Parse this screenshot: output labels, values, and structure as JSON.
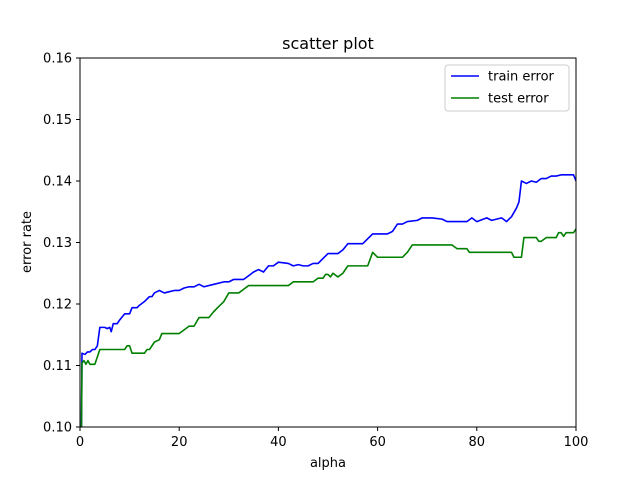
{
  "chart_data": {
    "type": "line",
    "title": "scatter plot",
    "xlabel": "alpha",
    "ylabel": "error rate",
    "xlim": [
      0,
      100
    ],
    "ylim": [
      0.1,
      0.16
    ],
    "xticks": [
      0,
      20,
      40,
      60,
      80,
      100
    ],
    "yticks": [
      0.1,
      0.11,
      0.12,
      0.13,
      0.14,
      0.15,
      0.16
    ],
    "xtick_labels": [
      "0",
      "20",
      "40",
      "60",
      "80",
      "100"
    ],
    "ytick_labels": [
      "0.10",
      "0.11",
      "0.12",
      "0.13",
      "0.14",
      "0.15",
      "0.16"
    ],
    "grid": false,
    "legend_position": "top-right",
    "series": [
      {
        "name": "train error",
        "color": "#0000ff",
        "points": [
          [
            0,
            0.1
          ],
          [
            0.3,
            0.1
          ],
          [
            0.4,
            0.112
          ],
          [
            1,
            0.1118
          ],
          [
            1.5,
            0.1122
          ],
          [
            2,
            0.1122
          ],
          [
            2.5,
            0.1126
          ],
          [
            3,
            0.1126
          ],
          [
            3.5,
            0.1132
          ],
          [
            4,
            0.1162
          ],
          [
            5,
            0.1162
          ],
          [
            5.5,
            0.116
          ],
          [
            6,
            0.1162
          ],
          [
            6.3,
            0.1155
          ],
          [
            6.7,
            0.1168
          ],
          [
            7.5,
            0.1168
          ],
          [
            8,
            0.1174
          ],
          [
            9,
            0.1184
          ],
          [
            10,
            0.1184
          ],
          [
            10.5,
            0.1194
          ],
          [
            11.5,
            0.1194
          ],
          [
            12,
            0.1198
          ],
          [
            13,
            0.1204
          ],
          [
            14,
            0.1212
          ],
          [
            14.5,
            0.1212
          ],
          [
            15,
            0.1218
          ],
          [
            16,
            0.1222
          ],
          [
            17,
            0.1218
          ],
          [
            18,
            0.122
          ],
          [
            19,
            0.1222
          ],
          [
            20,
            0.1222
          ],
          [
            21,
            0.1226
          ],
          [
            22,
            0.1228
          ],
          [
            23,
            0.1228
          ],
          [
            24,
            0.1232
          ],
          [
            25,
            0.1228
          ],
          [
            27,
            0.1232
          ],
          [
            29,
            0.1236
          ],
          [
            30,
            0.1236
          ],
          [
            31,
            0.124
          ],
          [
            33,
            0.124
          ],
          [
            34,
            0.1246
          ],
          [
            35,
            0.1252
          ],
          [
            36,
            0.1256
          ],
          [
            37,
            0.1252
          ],
          [
            38,
            0.1262
          ],
          [
            39,
            0.1262
          ],
          [
            40,
            0.1268
          ],
          [
            42,
            0.1266
          ],
          [
            43,
            0.1262
          ],
          [
            44,
            0.1264
          ],
          [
            45,
            0.1262
          ],
          [
            46,
            0.1262
          ],
          [
            47,
            0.1266
          ],
          [
            48,
            0.1266
          ],
          [
            49,
            0.1274
          ],
          [
            50,
            0.1282
          ],
          [
            52,
            0.1282
          ],
          [
            53,
            0.1288
          ],
          [
            54,
            0.1298
          ],
          [
            57,
            0.1298
          ],
          [
            58,
            0.1306
          ],
          [
            59,
            0.1314
          ],
          [
            62,
            0.1314
          ],
          [
            63,
            0.1318
          ],
          [
            64,
            0.133
          ],
          [
            65,
            0.133
          ],
          [
            66,
            0.1334
          ],
          [
            68,
            0.1336
          ],
          [
            69,
            0.134
          ],
          [
            71,
            0.134
          ],
          [
            73,
            0.1338
          ],
          [
            74,
            0.1334
          ],
          [
            78,
            0.1334
          ],
          [
            79,
            0.134
          ],
          [
            80,
            0.1334
          ],
          [
            82,
            0.134
          ],
          [
            83,
            0.1336
          ],
          [
            85,
            0.134
          ],
          [
            86,
            0.1334
          ],
          [
            87,
            0.1342
          ],
          [
            88,
            0.1356
          ],
          [
            88.5,
            0.1366
          ],
          [
            89,
            0.14
          ],
          [
            90,
            0.1396
          ],
          [
            91,
            0.14
          ],
          [
            92,
            0.1398
          ],
          [
            93,
            0.1404
          ],
          [
            94,
            0.1404
          ],
          [
            95,
            0.1408
          ],
          [
            96,
            0.1408
          ],
          [
            97,
            0.141
          ],
          [
            99.5,
            0.141
          ],
          [
            100,
            0.14
          ]
        ]
      },
      {
        "name": "test error",
        "color": "#008000",
        "points": [
          [
            0,
            0.1
          ],
          [
            0.3,
            0.1
          ],
          [
            0.4,
            0.1104
          ],
          [
            0.8,
            0.1108
          ],
          [
            1.2,
            0.1102
          ],
          [
            1.6,
            0.1108
          ],
          [
            2,
            0.1102
          ],
          [
            3,
            0.1102
          ],
          [
            3.5,
            0.1114
          ],
          [
            4,
            0.1126
          ],
          [
            9,
            0.1126
          ],
          [
            9.5,
            0.1132
          ],
          [
            10,
            0.1132
          ],
          [
            10.5,
            0.112
          ],
          [
            13,
            0.112
          ],
          [
            13.5,
            0.1126
          ],
          [
            14,
            0.1126
          ],
          [
            15,
            0.1138
          ],
          [
            16,
            0.1142
          ],
          [
            16.5,
            0.1152
          ],
          [
            20,
            0.1152
          ],
          [
            21,
            0.1158
          ],
          [
            22,
            0.1164
          ],
          [
            23,
            0.1164
          ],
          [
            24,
            0.1178
          ],
          [
            26,
            0.1178
          ],
          [
            27,
            0.1188
          ],
          [
            28,
            0.1196
          ],
          [
            29,
            0.1204
          ],
          [
            30,
            0.1218
          ],
          [
            32,
            0.1218
          ],
          [
            33,
            0.1224
          ],
          [
            34,
            0.123
          ],
          [
            42,
            0.123
          ],
          [
            43,
            0.1236
          ],
          [
            47,
            0.1236
          ],
          [
            48,
            0.1242
          ],
          [
            49,
            0.1242
          ],
          [
            49.5,
            0.1248
          ],
          [
            50,
            0.1248
          ],
          [
            50.5,
            0.1244
          ],
          [
            51,
            0.125
          ],
          [
            52,
            0.1244
          ],
          [
            53,
            0.125
          ],
          [
            54,
            0.1262
          ],
          [
            58,
            0.1262
          ],
          [
            59,
            0.1284
          ],
          [
            60,
            0.1276
          ],
          [
            65,
            0.1276
          ],
          [
            66,
            0.1284
          ],
          [
            67,
            0.1296
          ],
          [
            75,
            0.1296
          ],
          [
            76,
            0.129
          ],
          [
            78,
            0.129
          ],
          [
            78.5,
            0.1284
          ],
          [
            87,
            0.1284
          ],
          [
            87.5,
            0.1276
          ],
          [
            89,
            0.1276
          ],
          [
            89.5,
            0.1308
          ],
          [
            92,
            0.1308
          ],
          [
            92.5,
            0.1302
          ],
          [
            93,
            0.1302
          ],
          [
            94,
            0.1308
          ],
          [
            96,
            0.1308
          ],
          [
            96.5,
            0.1316
          ],
          [
            97,
            0.1316
          ],
          [
            97.5,
            0.131
          ],
          [
            98,
            0.1316
          ],
          [
            99.5,
            0.1316
          ],
          [
            100,
            0.1322
          ]
        ]
      }
    ]
  }
}
